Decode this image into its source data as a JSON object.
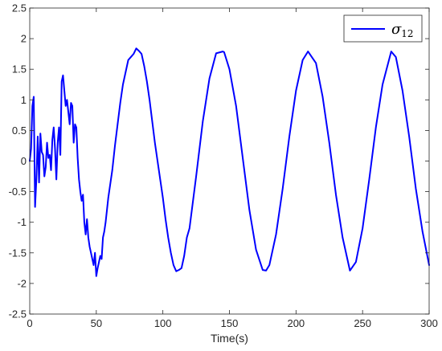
{
  "chart_data": {
    "type": "line",
    "title": "",
    "xlabel": "Time(s)",
    "ylabel": "",
    "xlim": [
      0,
      300
    ],
    "ylim": [
      -2.5,
      2.5
    ],
    "xticks": [
      0,
      50,
      100,
      150,
      200,
      250,
      300
    ],
    "yticks": [
      -2.5,
      -2,
      -1.5,
      -1,
      -0.5,
      0,
      0.5,
      1,
      1.5,
      2,
      2.5
    ],
    "grid": false,
    "legend_position": "top-right",
    "series": [
      {
        "name": "σ12",
        "name_base": "σ",
        "name_subscript": "12",
        "color": "#0000ff",
        "x": [
          0,
          1,
          2,
          3,
          4,
          5,
          6,
          7,
          8,
          9,
          10,
          11,
          12,
          13,
          14,
          15,
          16,
          17,
          18,
          19,
          20,
          21,
          22,
          23,
          24,
          25,
          26,
          27,
          28,
          29,
          30,
          31,
          32,
          33,
          34,
          35,
          36,
          37,
          38,
          39,
          40,
          41,
          42,
          43,
          44,
          45,
          46,
          47,
          48,
          49,
          50,
          51,
          52,
          53,
          54,
          55,
          56,
          57,
          58,
          59,
          60,
          62,
          64,
          66,
          68,
          70,
          72,
          74,
          76,
          78,
          80,
          82,
          84,
          86,
          88,
          90,
          92,
          94,
          96,
          98,
          100,
          102,
          104,
          106,
          108,
          110,
          112,
          114,
          116,
          118,
          120,
          125,
          130,
          135,
          140,
          145,
          146,
          150,
          155,
          160,
          165,
          170,
          175,
          177.5,
          180,
          185,
          190,
          195,
          200,
          205,
          209,
          215,
          220,
          225,
          230,
          235,
          240.5,
          245,
          250,
          255,
          260,
          265,
          271.5,
          275,
          280,
          285,
          290,
          295,
          300
        ],
        "y": [
          0,
          0.2,
          0.9,
          1.05,
          -0.75,
          -0.3,
          0.4,
          -0.35,
          0.45,
          0.15,
          0.1,
          -0.25,
          -0.1,
          0.3,
          0.05,
          0.1,
          -0.15,
          0.35,
          0.55,
          0.2,
          -0.3,
          0.3,
          0.55,
          0.1,
          1.3,
          1.4,
          1.15,
          0.9,
          1.0,
          0.8,
          0.6,
          0.95,
          0.9,
          0.3,
          0.6,
          0.55,
          0.05,
          -0.3,
          -0.5,
          -0.65,
          -0.55,
          -1.0,
          -1.2,
          -0.95,
          -1.25,
          -1.4,
          -1.5,
          -1.6,
          -1.7,
          -1.5,
          -1.88,
          -1.75,
          -1.65,
          -1.55,
          -1.6,
          -1.25,
          -1.15,
          -1.0,
          -0.8,
          -0.6,
          -0.45,
          -0.15,
          0.25,
          0.6,
          0.95,
          1.25,
          1.45,
          1.65,
          1.7,
          1.75,
          1.84,
          1.8,
          1.75,
          1.55,
          1.3,
          1.0,
          0.65,
          0.3,
          0.0,
          -0.3,
          -0.6,
          -0.95,
          -1.25,
          -1.5,
          -1.7,
          -1.8,
          -1.78,
          -1.75,
          -1.55,
          -1.25,
          -1.1,
          -0.25,
          0.65,
          1.35,
          1.76,
          1.79,
          1.78,
          1.5,
          0.9,
          0.05,
          -0.8,
          -1.45,
          -1.78,
          -1.79,
          -1.7,
          -1.2,
          -0.45,
          0.4,
          1.15,
          1.65,
          1.79,
          1.6,
          1.05,
          0.3,
          -0.55,
          -1.25,
          -1.79,
          -1.65,
          -1.1,
          -0.3,
          0.55,
          1.25,
          1.79,
          1.7,
          1.15,
          0.4,
          -0.45,
          -1.15,
          -1.7
        ]
      }
    ]
  }
}
